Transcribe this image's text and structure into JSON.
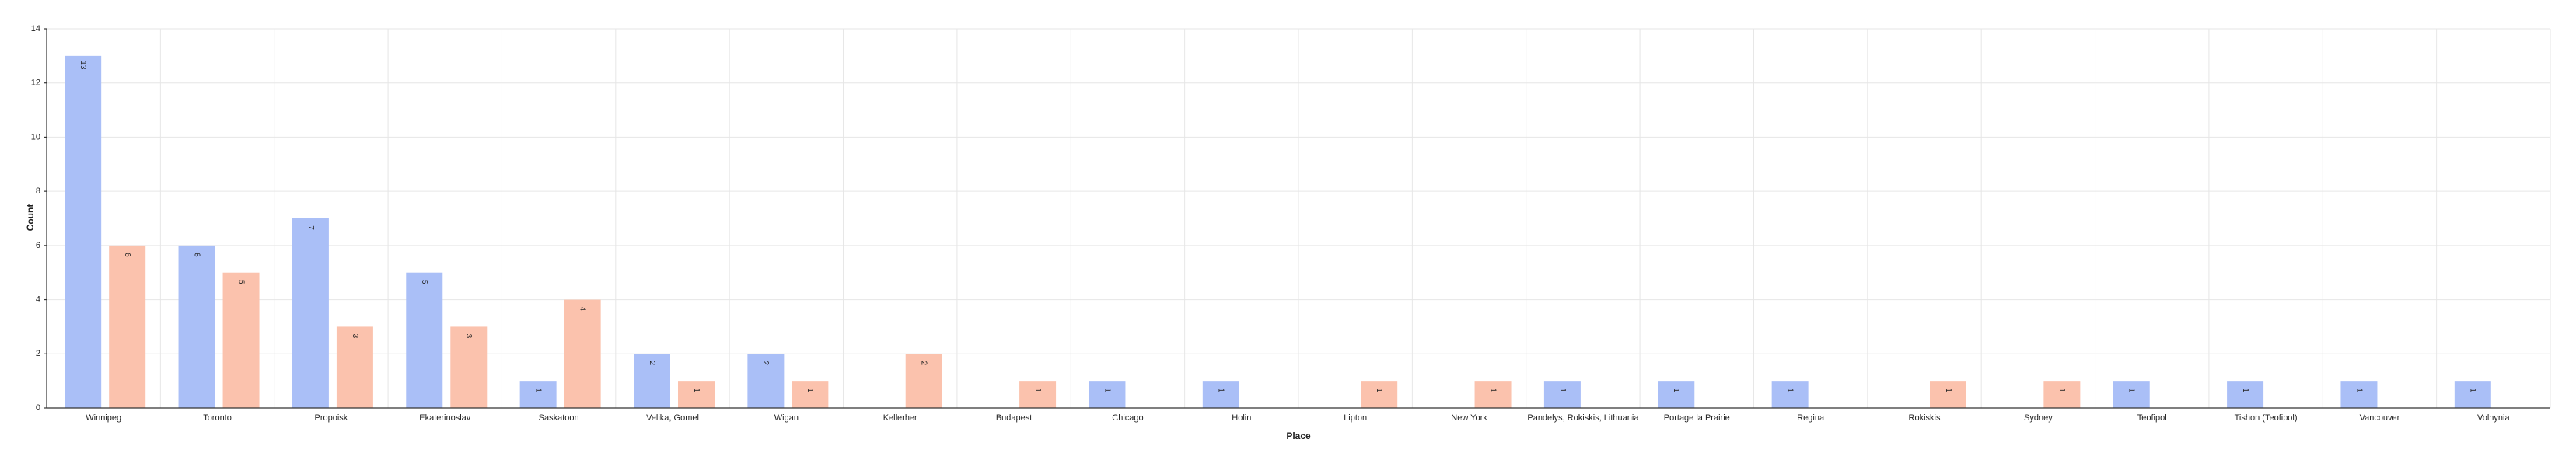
{
  "chart_data": {
    "type": "bar",
    "xlabel": "Place",
    "ylabel": "Count",
    "categories": [
      "Winnipeg",
      "Toronto",
      "Propoisk",
      "Ekaterinoslav",
      "Saskatoon",
      "Velika, Gomel",
      "Wigan",
      "Kellerher",
      "Budapest",
      "Chicago",
      "Holin",
      "Lipton",
      "New York",
      "Pandelys, Rokiskis, Lithuania",
      "Portage la Prairie",
      "Regina",
      "Rokiskis",
      "Sydney",
      "Teofipol",
      "Tishon (Teofipol)",
      "Vancouver",
      "Volhynia"
    ],
    "series": [
      {
        "color": "#aabff7",
        "values": [
          13,
          6,
          7,
          5,
          1,
          2,
          2,
          null,
          null,
          1,
          1,
          null,
          null,
          1,
          1,
          1,
          null,
          null,
          1,
          1,
          1,
          1
        ]
      },
      {
        "color": "#fbc2ad",
        "values": [
          6,
          5,
          3,
          3,
          4,
          1,
          1,
          2,
          1,
          null,
          null,
          1,
          1,
          null,
          null,
          null,
          1,
          1,
          null,
          null,
          null,
          null
        ]
      }
    ],
    "ylim": [
      0,
      14
    ],
    "yticks": [
      0,
      2,
      4,
      6,
      8,
      10,
      12,
      14
    ],
    "grid": true
  }
}
